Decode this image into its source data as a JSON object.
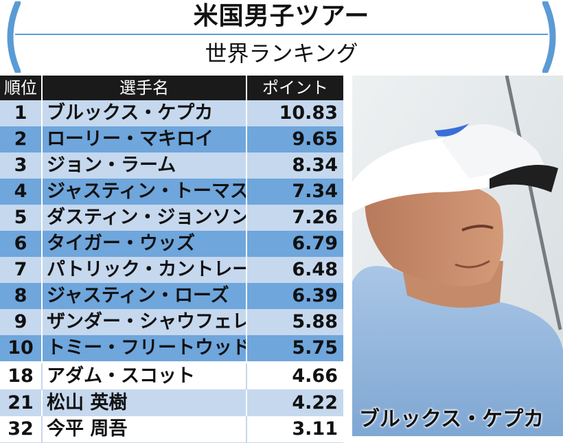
{
  "header": {
    "title": "米国男子ツアー",
    "subtitle": "世界ランキング",
    "accent_color": "#5b9bd5"
  },
  "table": {
    "columns": [
      "順位",
      "選手名",
      "ポイント"
    ],
    "rows": [
      {
        "rank": "1",
        "name": "ブルックス・ケプカ",
        "points": "10.83",
        "shade": "light"
      },
      {
        "rank": "2",
        "name": "ローリー・マキロイ",
        "points": "9.65",
        "shade": "dark"
      },
      {
        "rank": "3",
        "name": "ジョン・ラーム",
        "points": "8.34",
        "shade": "light"
      },
      {
        "rank": "4",
        "name": "ジャスティン・トーマス",
        "points": "7.34",
        "shade": "dark"
      },
      {
        "rank": "5",
        "name": "ダスティン・ジョンソン",
        "points": "7.26",
        "shade": "light"
      },
      {
        "rank": "6",
        "name": "タイガー・ウッズ",
        "points": "6.79",
        "shade": "dark"
      },
      {
        "rank": "7",
        "name": "パトリック・カントレー",
        "points": "6.48",
        "shade": "light"
      },
      {
        "rank": "8",
        "name": "ジャスティン・ローズ",
        "points": "6.39",
        "shade": "dark"
      },
      {
        "rank": "9",
        "name": "ザンダー・シャウフェレ",
        "points": "5.88",
        "shade": "light"
      },
      {
        "rank": "10",
        "name": "トミー・フリートウッド",
        "points": "5.75",
        "shade": "dark"
      },
      {
        "rank": "18",
        "name": "アダム・スコット",
        "points": "4.66",
        "shade": "white"
      },
      {
        "rank": "21",
        "name": "松山 英樹",
        "points": "4.22",
        "shade": "light"
      },
      {
        "rank": "32",
        "name": "今平 周吾",
        "points": "3.11",
        "shade": "white"
      }
    ],
    "colors": {
      "header": "#1a1a1a",
      "light": "#c5d8ee",
      "dark": "#6fa6dc"
    }
  },
  "photo": {
    "caption": "ブルックス・ケプカ",
    "icon": "golfer-photo"
  }
}
